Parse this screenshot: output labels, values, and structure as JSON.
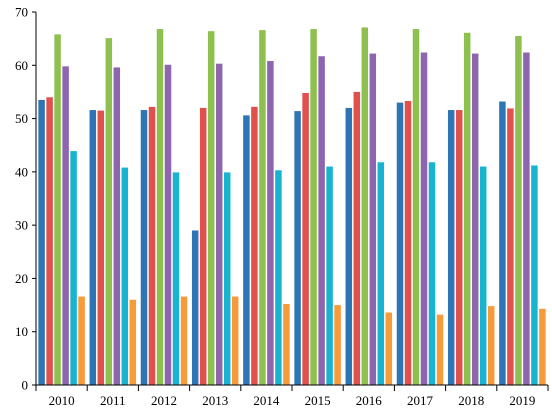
{
  "chart_data": {
    "type": "bar",
    "title": "",
    "xlabel": "",
    "ylabel": "",
    "ylim": [
      0,
      70
    ],
    "yticks": [
      0,
      10,
      20,
      30,
      40,
      50,
      60,
      70
    ],
    "grid": false,
    "legend": "none",
    "categories": [
      "2010",
      "2011",
      "2012",
      "2013",
      "2014",
      "2015",
      "2016",
      "2017",
      "2018",
      "2019"
    ],
    "series": [
      {
        "color": "#2e75b6",
        "values": [
          53.5,
          51.6,
          51.6,
          29.0,
          50.6,
          51.4,
          52.0,
          53.0,
          51.6,
          53.2
        ]
      },
      {
        "color": "#e0504d",
        "values": [
          54.0,
          51.5,
          52.2,
          52.0,
          52.2,
          54.8,
          55.0,
          53.3,
          51.6,
          51.9
        ]
      },
      {
        "color": "#8dc04f",
        "values": [
          65.8,
          65.1,
          66.8,
          66.4,
          66.6,
          66.8,
          67.1,
          66.8,
          66.1,
          65.5
        ]
      },
      {
        "color": "#8e66b0",
        "values": [
          59.8,
          59.6,
          60.1,
          60.3,
          60.8,
          61.7,
          62.2,
          62.4,
          62.2,
          62.4
        ]
      },
      {
        "color": "#18b4cf",
        "values": [
          43.9,
          40.8,
          39.9,
          39.9,
          40.3,
          41.0,
          41.8,
          41.8,
          41.0,
          41.2
        ]
      },
      {
        "color": "#f79a3a",
        "values": [
          16.6,
          16.0,
          16.6,
          16.6,
          15.2,
          15.0,
          13.6,
          13.2,
          14.8,
          14.3
        ]
      }
    ]
  }
}
